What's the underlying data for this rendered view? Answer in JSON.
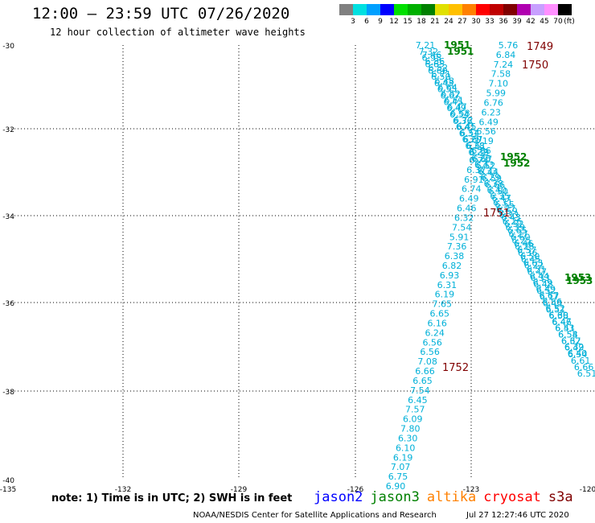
{
  "header": {
    "title": "12:00 – 23:59 UTC 07/26/2020",
    "subtitle": "12 hour collection of altimeter wave heights"
  },
  "legend": {
    "colors": [
      "#808080",
      "#00e0e0",
      "#00a0ff",
      "#0000ff",
      "#00e000",
      "#00b000",
      "#008000",
      "#e0e000",
      "#ffc000",
      "#ff8000",
      "#ff0000",
      "#c00000",
      "#800000",
      "#b000b0",
      "#c8a0ff",
      "#ff90ff",
      "#000000"
    ],
    "ticks": [
      "3",
      "6",
      "9",
      "12",
      "15",
      "18",
      "21",
      "24",
      "27",
      "30",
      "33",
      "36",
      "39",
      "42",
      "45",
      "70",
      "(ft)"
    ]
  },
  "map": {
    "lat_labels": [
      "-30",
      "-32",
      "-34",
      "-36",
      "-38",
      "-40"
    ],
    "lon_labels": [
      "-135",
      "-132",
      "-129",
      "-126",
      "-123",
      "-120"
    ],
    "track_a": [
      "7.21",
      "7.32",
      "6.95",
      "6.65",
      "6.60",
      "6.50",
      "6.43",
      "6.55",
      "6.67",
      "6.45",
      "6.49",
      "6.54",
      "6.36",
      "6.41",
      "6.31",
      "6.29",
      "6.38",
      "6.22",
      "6.28",
      "6.43",
      "6.33",
      "6.29",
      "6.38",
      "6.40",
      "6.35",
      "6.31",
      "6.27",
      "6.33",
      "6.26",
      "6.39",
      "6.27",
      "6.25",
      "6.28",
      "6.36",
      "6.45",
      "6.22",
      "6.47",
      "6.33",
      "6.48",
      "6.52",
      "6.17",
      "6.43",
      "6.51",
      "6.38",
      "6.46",
      "6.41",
      "6.54",
      "6.37",
      "6.32",
      "6.40"
    ],
    "track_b": [
      "7.46",
      "6.86",
      "6.52",
      "6.71",
      "6.48",
      "6.64",
      "6.52",
      "6.61",
      "6.47",
      "6.58",
      "6.72",
      "6.45",
      "6.54",
      "6.67",
      "6.61",
      "6.39",
      "6.57",
      "6.52",
      "6.44",
      "6.59",
      "6.66",
      "6.50",
      "6.47",
      "6.55",
      "6.59",
      "6.43",
      "6.52",
      "6.65",
      "6.60",
      "6.46",
      "6.57",
      "6.50",
      "6.63",
      "6.51",
      "6.44",
      "6.59",
      "6.49",
      "6.67",
      "6.56",
      "6.52",
      "6.60",
      "6.47",
      "6.53",
      "6.58",
      "6.62",
      "6.49",
      "6.54",
      "6.61",
      "6.66",
      "6.51"
    ],
    "track_c": [
      "5.76",
      "6.84",
      "7.24",
      "7.58",
      "7.10",
      "5.99",
      "6.76",
      "6.23",
      "6.49",
      "6.56",
      "7.19",
      "6.56",
      "6.74",
      "6.37",
      "6.91",
      "6.74",
      "6.49",
      "6.46",
      "6.32",
      "7.54",
      "5.91",
      "7.36",
      "6.38",
      "6.82",
      "6.93",
      "6.31",
      "6.19",
      "7.65",
      "6.65",
      "6.16",
      "6.24",
      "6.56",
      "6.56",
      "7.08",
      "6.66",
      "6.65",
      "7.54",
      "6.45",
      "7.57",
      "6.09",
      "7.80",
      "6.30",
      "6.10",
      "6.19",
      "7.07",
      "6.75",
      "6.90"
    ],
    "times": {
      "t1951": "1951",
      "t1952": "1952",
      "t1953": "1953",
      "t1749": "1749",
      "t1750": "1750",
      "t1751": "1751",
      "t1752": "1752"
    }
  },
  "footer": {
    "note": "note: 1) Time is in UTC; 2) SWH is in feet",
    "satellites": [
      {
        "name": "jason2",
        "color": "#0000ff"
      },
      {
        "name": "jason3",
        "color": "#008000"
      },
      {
        "name": "altika",
        "color": "#ff8000"
      },
      {
        "name": "cryosat",
        "color": "#ff0000"
      },
      {
        "name": "s3a",
        "color": "#800000"
      }
    ],
    "credit": "NOAA/NESDIS Center for Satellite Applications and Research",
    "timestamp": "Jul 27 12:27:46 UTC 2020"
  }
}
